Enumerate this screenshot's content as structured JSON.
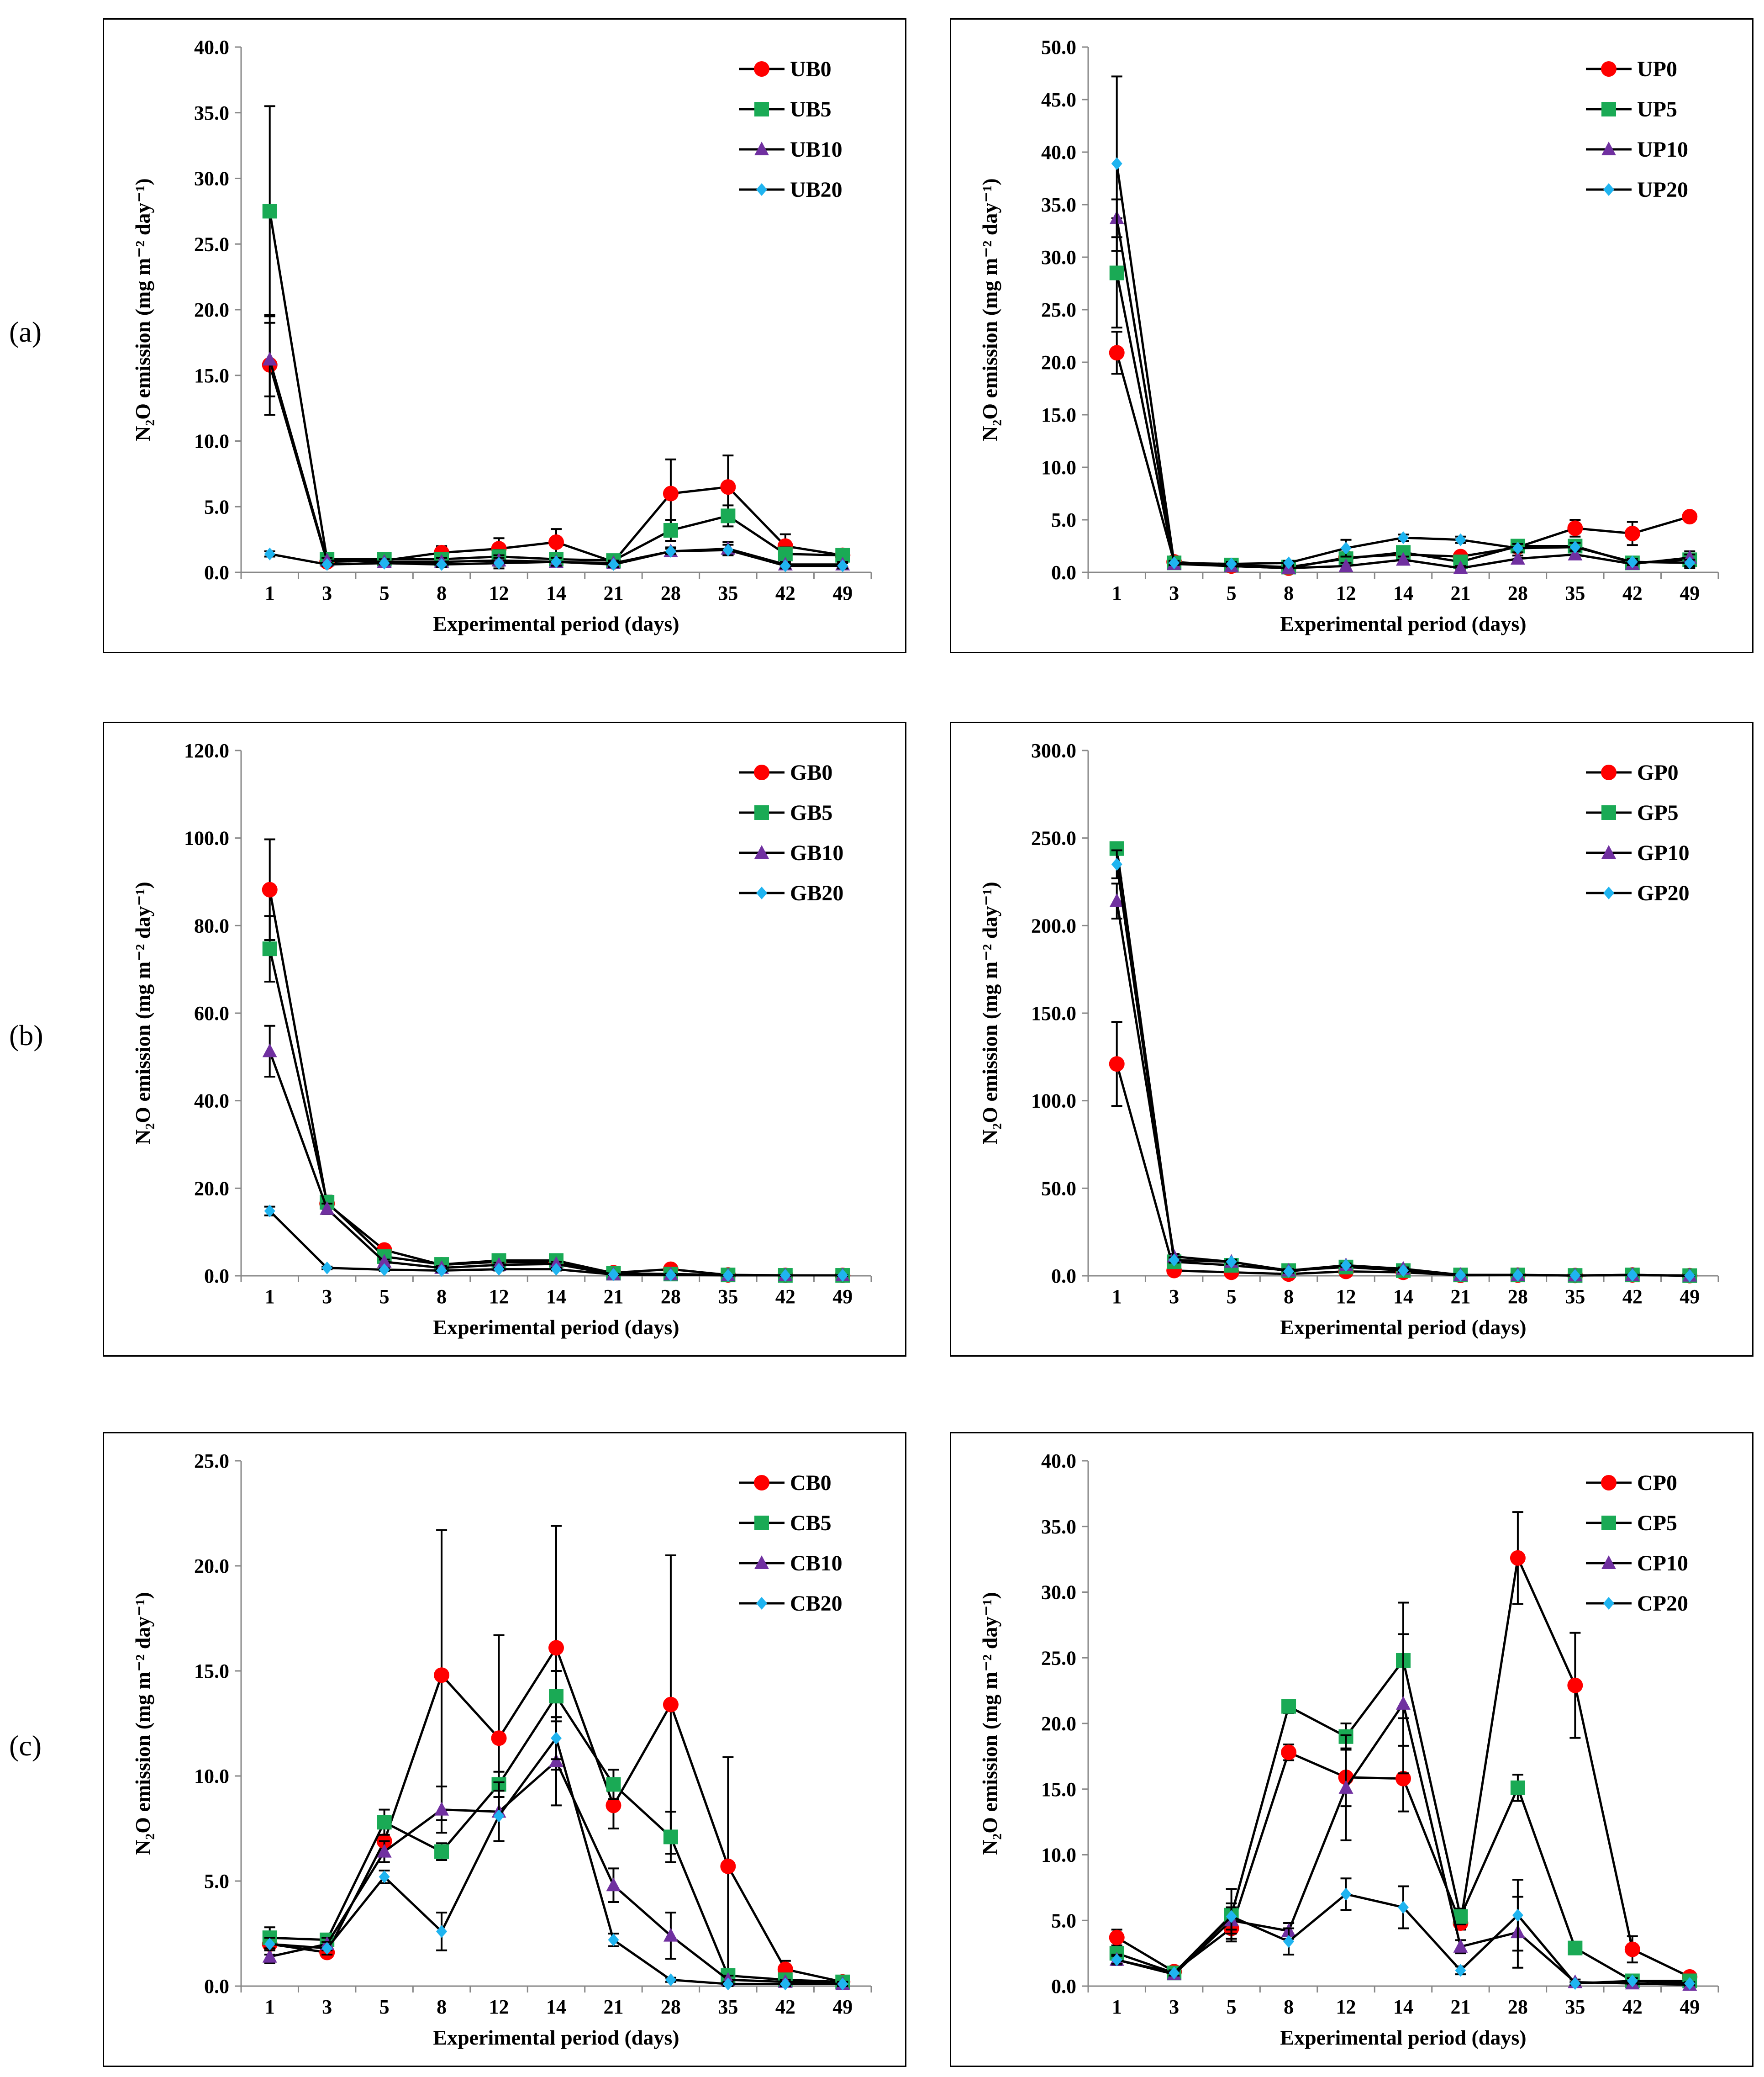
{
  "row_labels": [
    "(a)",
    "(b)",
    "(c)"
  ],
  "colors": {
    "s0": "#ff0000",
    "s5": "#1aaa55",
    "s10": "#7030a0",
    "s20": "#1fb4f0"
  },
  "chart_data": [
    {
      "type": "line",
      "panel": "a-left",
      "ylabel": "N₂O emission (mg m⁻² day⁻¹)",
      "xlabel": "Experimental period (days)",
      "categories": [
        "1",
        "3",
        "5",
        "8",
        "12",
        "14",
        "21",
        "28",
        "35",
        "42",
        "49"
      ],
      "ylim": [
        0,
        40
      ],
      "ystep": 5,
      "series": [
        {
          "name": "UB0",
          "marker": "circle",
          "values": [
            15.8,
            0.8,
            0.9,
            1.5,
            1.8,
            2.3,
            0.8,
            6.0,
            6.5,
            2.0,
            1.3
          ],
          "err": [
            3.8,
            0.2,
            0.2,
            0.5,
            0.8,
            1.0,
            0.3,
            2.6,
            2.4,
            0.9,
            0.3
          ]
        },
        {
          "name": "UB5",
          "marker": "square",
          "values": [
            27.5,
            1.0,
            1.0,
            1.0,
            1.2,
            1.0,
            0.9,
            3.2,
            4.3,
            1.4,
            1.3
          ],
          "err": [
            8.0,
            0.2,
            0.2,
            0.3,
            0.5,
            0.4,
            0.2,
            0.8,
            0.8,
            0.5,
            0.2
          ]
        },
        {
          "name": "UB10",
          "marker": "triangle",
          "values": [
            16.2,
            0.9,
            0.8,
            0.8,
            0.9,
            0.8,
            0.7,
            1.6,
            1.8,
            0.6,
            0.6
          ],
          "err": [
            2.8,
            0.2,
            0.2,
            0.3,
            0.4,
            0.3,
            0.2,
            0.3,
            0.5,
            0.2,
            0.2
          ]
        },
        {
          "name": "UB20",
          "marker": "diamond",
          "values": [
            1.4,
            0.6,
            0.7,
            0.6,
            0.7,
            0.8,
            0.6,
            1.6,
            1.7,
            0.5,
            0.5
          ],
          "err": [
            0.2,
            0.1,
            0.1,
            0.2,
            0.4,
            0.3,
            0.2,
            0.2,
            0.4,
            0.2,
            0.2
          ]
        }
      ]
    },
    {
      "type": "line",
      "panel": "a-right",
      "ylabel": "N₂O emission (mg m⁻² day⁻¹)",
      "xlabel": "Experimental period (days)",
      "categories": [
        "1",
        "3",
        "5",
        "8",
        "12",
        "14",
        "21",
        "28",
        "35",
        "42",
        "49"
      ],
      "ylim": [
        0,
        50
      ],
      "ystep": 5,
      "series": [
        {
          "name": "UP0",
          "marker": "circle",
          "values": [
            20.9,
            1.0,
            0.6,
            0.4,
            1.4,
            1.7,
            1.5,
            2.4,
            4.2,
            3.7,
            5.3
          ],
          "err": [
            2.0,
            0.2,
            0.2,
            0.2,
            0.4,
            0.4,
            0.3,
            0.4,
            0.8,
            1.1,
            0.2
          ]
        },
        {
          "name": "UP5",
          "marker": "square",
          "values": [
            28.5,
            0.9,
            0.7,
            0.5,
            1.3,
            1.9,
            1.0,
            2.5,
            2.5,
            0.9,
            1.2
          ],
          "err": [
            5.2,
            0.2,
            0.2,
            0.2,
            0.3,
            0.4,
            0.3,
            0.4,
            0.4,
            0.3,
            0.8
          ]
        },
        {
          "name": "UP10",
          "marker": "triangle",
          "values": [
            33.7,
            0.8,
            0.6,
            0.4,
            0.6,
            1.2,
            0.4,
            1.3,
            1.7,
            0.8,
            1.4
          ],
          "err": [
            1.8,
            0.2,
            0.2,
            0.2,
            0.3,
            0.3,
            0.2,
            0.3,
            0.4,
            0.3,
            0.3
          ]
        },
        {
          "name": "UP20",
          "marker": "diamond",
          "values": [
            38.9,
            0.9,
            0.8,
            0.9,
            2.3,
            3.3,
            3.1,
            2.3,
            2.4,
            1.0,
            0.9
          ],
          "err": [
            8.3,
            0.2,
            0.2,
            0.2,
            0.8,
            0.3,
            0.3,
            0.4,
            0.4,
            0.3,
            0.3
          ]
        }
      ]
    },
    {
      "type": "line",
      "panel": "b-left",
      "ylabel": "N₂O emission (mg m⁻² day⁻¹)",
      "xlabel": "Experimental period (days)",
      "categories": [
        "1",
        "3",
        "5",
        "8",
        "12",
        "14",
        "21",
        "28",
        "35",
        "42",
        "49"
      ],
      "ylim": [
        0,
        120
      ],
      "ystep": 20,
      "series": [
        {
          "name": "GB0",
          "marker": "circle",
          "values": [
            88.2,
            16.5,
            5.9,
            2.5,
            3.2,
            3.0,
            0.7,
            1.5,
            0.2,
            0.1,
            0.1
          ],
          "err": [
            11.5,
            1.2,
            0.8,
            0.4,
            0.6,
            0.5,
            0.3,
            0.4,
            0.1,
            0.1,
            0.1
          ]
        },
        {
          "name": "GB5",
          "marker": "square",
          "values": [
            74.7,
            16.8,
            4.4,
            2.6,
            3.5,
            3.5,
            0.6,
            0.4,
            0.2,
            0.1,
            0.1
          ],
          "err": [
            7.5,
            1.5,
            0.6,
            0.5,
            0.6,
            0.5,
            0.3,
            0.2,
            0.1,
            0.1,
            0.1
          ]
        },
        {
          "name": "GB10",
          "marker": "triangle",
          "values": [
            51.3,
            15.3,
            3.2,
            1.8,
            2.5,
            2.7,
            0.3,
            0.3,
            0.1,
            0.1,
            0.1
          ],
          "err": [
            5.8,
            1.2,
            0.5,
            0.4,
            0.5,
            0.5,
            0.2,
            0.2,
            0.1,
            0.1,
            0.1
          ]
        },
        {
          "name": "GB20",
          "marker": "diamond",
          "values": [
            14.8,
            1.8,
            1.4,
            1.2,
            1.5,
            1.5,
            0.3,
            0.2,
            0.1,
            0.1,
            0.1
          ],
          "err": [
            1.0,
            0.3,
            0.3,
            0.3,
            0.3,
            0.3,
            0.1,
            0.1,
            0.1,
            0.1,
            0.1
          ]
        }
      ]
    },
    {
      "type": "line",
      "panel": "b-right",
      "ylabel": "N₂O emission (mg m⁻² day⁻¹)",
      "xlabel": "Experimental period (days)",
      "categories": [
        "1",
        "3",
        "5",
        "8",
        "12",
        "14",
        "21",
        "28",
        "35",
        "42",
        "49"
      ],
      "ylim": [
        0,
        300
      ],
      "ystep": 50,
      "series": [
        {
          "name": "GP0",
          "marker": "circle",
          "values": [
            121.0,
            3.0,
            2.0,
            1.0,
            2.5,
            2.0,
            0.3,
            0.4,
            0.2,
            0.5,
            0.1
          ],
          "err": [
            24.0,
            1.0,
            0.8,
            0.6,
            0.8,
            0.6,
            0.2,
            0.2,
            0.1,
            0.2,
            0.1
          ]
        },
        {
          "name": "GP5",
          "marker": "square",
          "values": [
            244.0,
            8.0,
            6.0,
            3.0,
            5.0,
            3.0,
            0.5,
            0.5,
            0.2,
            0.5,
            0.1
          ],
          "err": [
            3.0,
            1.5,
            1.2,
            0.8,
            1.0,
            0.8,
            0.2,
            0.2,
            0.1,
            0.2,
            0.1
          ]
        },
        {
          "name": "GP10",
          "marker": "triangle",
          "values": [
            214.0,
            11.0,
            8.0,
            3.0,
            6.0,
            4.0,
            0.5,
            0.5,
            0.2,
            0.5,
            0.1
          ],
          "err": [
            10.0,
            1.5,
            1.2,
            0.8,
            1.0,
            0.8,
            0.2,
            0.2,
            0.1,
            0.2,
            0.1
          ]
        },
        {
          "name": "GP20",
          "marker": "diamond",
          "values": [
            235.0,
            9.0,
            8.0,
            2.5,
            6.0,
            3.0,
            0.4,
            0.4,
            0.2,
            0.4,
            0.1
          ],
          "err": [
            8.0,
            1.5,
            1.2,
            0.8,
            1.0,
            0.8,
            0.2,
            0.2,
            0.1,
            0.2,
            0.1
          ]
        }
      ]
    },
    {
      "type": "line",
      "panel": "c-left",
      "ylabel": "N₂O emission (mg m⁻² day⁻¹)",
      "xlabel": "Experimental period (days)",
      "categories": [
        "1",
        "3",
        "5",
        "8",
        "12",
        "14",
        "21",
        "28",
        "35",
        "42",
        "49"
      ],
      "ylim": [
        0,
        25
      ],
      "ystep": 5,
      "series": [
        {
          "name": "CB0",
          "marker": "circle",
          "values": [
            2.0,
            1.6,
            6.9,
            14.8,
            11.8,
            16.1,
            8.6,
            13.4,
            5.7,
            0.8,
            0.2
          ],
          "err": [
            0.5,
            0.2,
            1.0,
            6.9,
            4.9,
            5.8,
            1.1,
            7.1,
            5.2,
            0.4,
            0.1
          ]
        },
        {
          "name": "CB5",
          "marker": "square",
          "values": [
            2.3,
            2.2,
            7.8,
            6.4,
            9.6,
            13.8,
            9.6,
            7.1,
            0.5,
            0.3,
            0.2
          ],
          "err": [
            0.5,
            0.3,
            0.6,
            0.4,
            0.6,
            1.2,
            0.7,
            1.2,
            0.3,
            0.2,
            0.1
          ]
        },
        {
          "name": "CB10",
          "marker": "triangle",
          "values": [
            1.4,
            2.0,
            6.4,
            8.4,
            8.3,
            10.7,
            4.8,
            2.4,
            0.3,
            0.2,
            0.1
          ],
          "err": [
            0.3,
            0.3,
            0.5,
            1.1,
            1.4,
            2.1,
            0.8,
            1.1,
            0.2,
            0.1,
            0.1
          ]
        },
        {
          "name": "CB20",
          "marker": "diamond",
          "values": [
            2.0,
            1.8,
            5.2,
            2.6,
            8.1,
            11.8,
            2.2,
            0.3,
            0.1,
            0.1,
            0.1
          ],
          "err": [
            0.3,
            0.3,
            0.3,
            0.9,
            1.2,
            1.0,
            0.3,
            0.1,
            0.1,
            0.1,
            0.1
          ]
        }
      ]
    },
    {
      "type": "line",
      "panel": "c-right",
      "ylabel": "N₂O emission (mg m⁻² day⁻¹)",
      "xlabel": "Experimental period (days)",
      "categories": [
        "1",
        "3",
        "5",
        "8",
        "12",
        "14",
        "21",
        "28",
        "35",
        "42",
        "49"
      ],
      "ylim": [
        0,
        40
      ],
      "ystep": 5,
      "series": [
        {
          "name": "CP0",
          "marker": "circle",
          "values": [
            3.7,
            1.1,
            4.4,
            17.8,
            15.9,
            15.8,
            4.8,
            32.6,
            22.9,
            2.8,
            0.7
          ],
          "err": [
            0.6,
            0.2,
            0.8,
            0.6,
            2.2,
            2.5,
            0.5,
            3.5,
            4.0,
            1.0,
            0.2
          ]
        },
        {
          "name": "CP5",
          "marker": "square",
          "values": [
            2.5,
            1.0,
            5.4,
            21.3,
            19.0,
            24.8,
            5.3,
            15.1,
            2.9,
            0.4,
            0.4
          ],
          "err": [
            0.5,
            0.2,
            2.0,
            0.5,
            1.0,
            4.4,
            0.6,
            1.0,
            0.4,
            0.2,
            0.2
          ]
        },
        {
          "name": "CP10",
          "marker": "triangle",
          "values": [
            2.0,
            0.9,
            5.0,
            4.2,
            15.1,
            21.5,
            3.0,
            4.1,
            0.3,
            0.2,
            0.1
          ],
          "err": [
            0.4,
            0.2,
            1.0,
            0.6,
            4.0,
            5.3,
            0.5,
            2.7,
            0.2,
            0.1,
            0.1
          ]
        },
        {
          "name": "CP20",
          "marker": "diamond",
          "values": [
            2.0,
            1.0,
            5.3,
            3.4,
            7.0,
            6.0,
            1.2,
            5.4,
            0.2,
            0.4,
            0.2
          ],
          "err": [
            0.3,
            0.2,
            1.0,
            1.0,
            1.2,
            1.6,
            0.3,
            2.7,
            0.1,
            0.2,
            0.1
          ]
        }
      ]
    }
  ]
}
